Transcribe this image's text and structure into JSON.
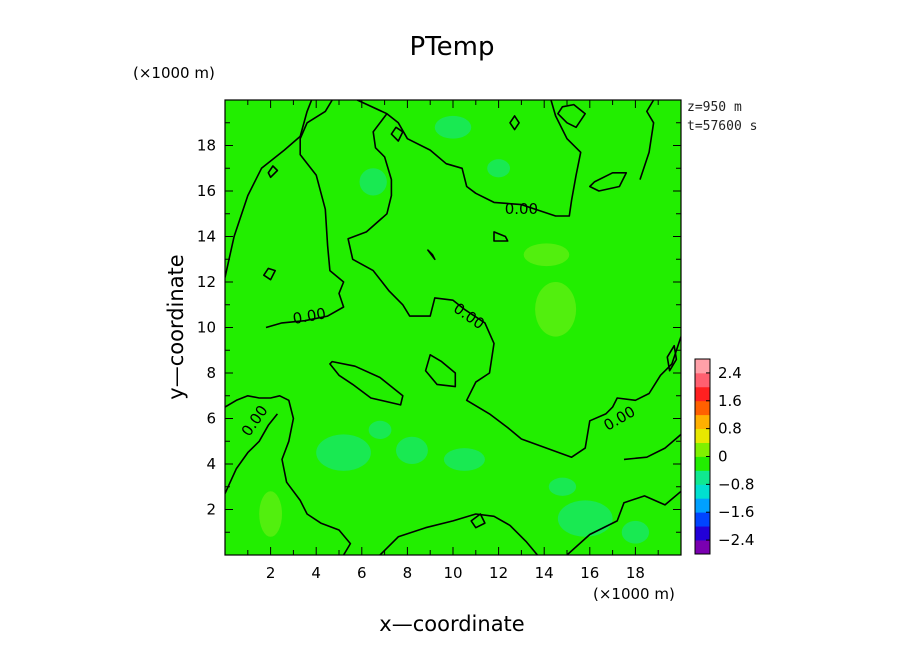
{
  "chart_data": {
    "type": "heatmap",
    "title": "PTemp",
    "xlabel": "x—coordinate",
    "ylabel": "y—coordinate",
    "x_unit_label": "(×1000 m)",
    "y_unit_label": "(×1000 m)",
    "xlim": [
      0,
      20
    ],
    "ylim": [
      0,
      20
    ],
    "x_ticks": [
      2,
      4,
      6,
      8,
      10,
      12,
      14,
      16,
      18
    ],
    "y_ticks": [
      2,
      4,
      6,
      8,
      10,
      12,
      14,
      16,
      18
    ],
    "x_tick_labels": [
      "2",
      "4",
      "6",
      "8",
      "10",
      "12",
      "14",
      "16",
      "18"
    ],
    "y_tick_labels": [
      "2",
      "4",
      "6",
      "8",
      "10",
      "12",
      "14",
      "16",
      "18"
    ],
    "info_lines": [
      "z=950 m",
      "t=57600 s"
    ],
    "contour_label": "0.00",
    "background_color": "#22ee00",
    "colorbar": {
      "range": [
        -2.8,
        2.8
      ],
      "tick_values": [
        2.4,
        1.6,
        0.8,
        0,
        -0.8,
        -1.6,
        -2.4
      ],
      "tick_labels": [
        "2.4",
        "1.6",
        "0.8",
        "0",
        "−0.8",
        "−1.6",
        "−2.4"
      ],
      "colors": [
        "#7a00b0",
        "#2200d8",
        "#0044ff",
        "#00a0ff",
        "#00e0d0",
        "#10e890",
        "#22ee00",
        "#80f000",
        "#e8e800",
        "#ffb000",
        "#ff6000",
        "#ff2020",
        "#ff6070",
        "#ffa0a8"
      ]
    },
    "patches": [
      {
        "x": 2.0,
        "y": 1.8,
        "rx": 0.5,
        "ry": 1.0,
        "value": 0.3
      },
      {
        "x": 5.2,
        "y": 4.5,
        "rx": 1.2,
        "ry": 0.8,
        "value": -0.3
      },
      {
        "x": 8.2,
        "y": 4.6,
        "rx": 0.7,
        "ry": 0.6,
        "value": -0.3
      },
      {
        "x": 6.8,
        "y": 5.5,
        "rx": 0.5,
        "ry": 0.4,
        "value": -0.3
      },
      {
        "x": 10.5,
        "y": 4.2,
        "rx": 0.9,
        "ry": 0.5,
        "value": -0.3
      },
      {
        "x": 15.8,
        "y": 1.6,
        "rx": 1.2,
        "ry": 0.8,
        "value": -0.3
      },
      {
        "x": 14.8,
        "y": 3.0,
        "rx": 0.6,
        "ry": 0.4,
        "value": -0.3
      },
      {
        "x": 14.5,
        "y": 10.8,
        "rx": 0.9,
        "ry": 1.2,
        "value": 0.3
      },
      {
        "x": 14.1,
        "y": 13.2,
        "rx": 1.0,
        "ry": 0.5,
        "value": 0.3
      },
      {
        "x": 10.0,
        "y": 18.8,
        "rx": 0.8,
        "ry": 0.5,
        "value": -0.3
      },
      {
        "x": 6.5,
        "y": 16.4,
        "rx": 0.6,
        "ry": 0.6,
        "value": -0.3
      },
      {
        "x": 12.0,
        "y": 17.0,
        "rx": 0.5,
        "ry": 0.4,
        "value": -0.3
      },
      {
        "x": 18.0,
        "y": 1.0,
        "rx": 0.6,
        "ry": 0.5,
        "value": -0.3
      }
    ],
    "zero_contours": [
      [
        [
          0,
          6.5
        ],
        [
          0.5,
          6.8
        ],
        [
          1,
          7.0
        ],
        [
          1.5,
          6.9
        ],
        [
          2.0,
          6.9
        ],
        [
          2.4,
          7.0
        ],
        [
          2.8,
          6.8
        ],
        [
          3,
          6.0
        ],
        [
          2.8,
          5.0
        ],
        [
          2.5,
          4.2
        ],
        [
          2.7,
          3.2
        ],
        [
          3.3,
          2.4
        ],
        [
          3.6,
          1.8
        ],
        [
          4.2,
          1.4
        ],
        [
          5.0,
          1.1
        ],
        [
          5.5,
          0.5
        ],
        [
          5.2,
          0
        ]
      ],
      [
        [
          0,
          2.7
        ],
        [
          0.5,
          3.8
        ],
        [
          1,
          4.5
        ],
        [
          1.5,
          5.0
        ],
        [
          1.9,
          5.7
        ],
        [
          2.3,
          6.2
        ]
      ],
      [
        [
          6.8,
          0
        ],
        [
          7.6,
          0.8
        ],
        [
          8.8,
          1.2
        ],
        [
          10,
          1.5
        ],
        [
          11,
          1.8
        ],
        [
          11.8,
          1.7
        ],
        [
          12.5,
          1.3
        ],
        [
          13.2,
          0.6
        ],
        [
          13.7,
          0
        ]
      ],
      [
        [
          15.0,
          0
        ],
        [
          16.0,
          0.9
        ],
        [
          17.2,
          1.5
        ],
        [
          17.5,
          2.3
        ],
        [
          18.4,
          2.6
        ],
        [
          19.3,
          2.2
        ],
        [
          20,
          2.8
        ]
      ],
      [
        [
          0,
          12.2
        ],
        [
          0.4,
          14
        ],
        [
          1.0,
          15.8
        ],
        [
          1.6,
          17.0
        ],
        [
          2.6,
          17.8
        ],
        [
          3.3,
          18.4
        ],
        [
          3.6,
          19.5
        ],
        [
          3.8,
          20
        ]
      ],
      [
        [
          1.8,
          10.0
        ],
        [
          2.5,
          10.2
        ],
        [
          3.5,
          10.3
        ],
        [
          4.5,
          10.5
        ],
        [
          5.2,
          10.9
        ],
        [
          5.0,
          11.5
        ],
        [
          5.2,
          12.0
        ],
        [
          4.6,
          12.5
        ],
        [
          4.5,
          13.6
        ],
        [
          4.4,
          15.2
        ],
        [
          4.0,
          16.7
        ],
        [
          3.3,
          17.6
        ],
        [
          3.3,
          18.3
        ],
        [
          3.6,
          19.0
        ],
        [
          4.4,
          19.5
        ],
        [
          4.7,
          20
        ]
      ],
      [
        [
          5.8,
          20
        ],
        [
          7.1,
          19.4
        ],
        [
          7.6,
          19.0
        ],
        [
          8.0,
          18.3
        ],
        [
          9.0,
          17.8
        ],
        [
          9.7,
          17.2
        ],
        [
          10.4,
          17.0
        ],
        [
          10.6,
          16.2
        ],
        [
          11.0,
          15.9
        ],
        [
          11.8,
          15.5
        ],
        [
          13.0,
          15.4
        ],
        [
          14.5,
          14.9
        ],
        [
          15.1,
          14.9
        ],
        [
          15.2,
          15.6
        ],
        [
          15.4,
          16.7
        ],
        [
          15.6,
          17.7
        ],
        [
          15.0,
          18.3
        ],
        [
          14.5,
          19.3
        ],
        [
          14.3,
          20
        ]
      ],
      [
        [
          7.1,
          19.4
        ],
        [
          6.5,
          18.6
        ],
        [
          6.6,
          17.9
        ],
        [
          7.0,
          17.5
        ],
        [
          7.3,
          16.5
        ],
        [
          7.3,
          15.8
        ],
        [
          7.1,
          15.0
        ],
        [
          6.2,
          14.2
        ],
        [
          5.4,
          13.9
        ],
        [
          5.6,
          13.0
        ],
        [
          6.5,
          12.5
        ],
        [
          7.2,
          11.6
        ],
        [
          7.8,
          11.0
        ],
        [
          8.1,
          10.5
        ],
        [
          9.0,
          10.5
        ],
        [
          9.2,
          11.3
        ],
        [
          10.0,
          11.2
        ],
        [
          10.5,
          10.8
        ],
        [
          11.4,
          10.2
        ],
        [
          11.8,
          9.3
        ],
        [
          11.6,
          8.0
        ],
        [
          11.0,
          7.6
        ],
        [
          10.6,
          6.8
        ],
        [
          11.6,
          6.2
        ],
        [
          12.4,
          5.6
        ],
        [
          13.0,
          5.1
        ],
        [
          14.1,
          4.7
        ],
        [
          15.2,
          4.3
        ],
        [
          15.8,
          4.7
        ],
        [
          16.0,
          5.9
        ],
        [
          16.7,
          6.2
        ],
        [
          17.0,
          6.5
        ],
        [
          17.2,
          6.9
        ],
        [
          18.0,
          6.8
        ],
        [
          18.6,
          7.1
        ],
        [
          19.1,
          7.9
        ],
        [
          19.6,
          8.4
        ],
        [
          20,
          9.6
        ]
      ],
      [
        [
          18.2,
          16.5
        ],
        [
          18.6,
          17.7
        ],
        [
          18.8,
          19.0
        ],
        [
          18.5,
          19.5
        ],
        [
          18.8,
          20
        ]
      ],
      [
        [
          17.5,
          4.2
        ],
        [
          18.5,
          4.3
        ],
        [
          19.3,
          4.7
        ],
        [
          20,
          5.3
        ]
      ]
    ],
    "closed_contours": [
      [
        [
          4.7,
          8.5
        ],
        [
          5.7,
          8.3
        ],
        [
          6.8,
          7.8
        ],
        [
          7.8,
          7.0
        ],
        [
          7.7,
          6.6
        ],
        [
          6.4,
          6.9
        ],
        [
          5.6,
          7.5
        ],
        [
          5.0,
          7.9
        ],
        [
          4.6,
          8.4
        ]
      ],
      [
        [
          9.0,
          8.8
        ],
        [
          9.5,
          8.5
        ],
        [
          10.1,
          8.0
        ],
        [
          10.1,
          7.4
        ],
        [
          9.3,
          7.5
        ],
        [
          8.8,
          8.1
        ]
      ],
      [
        [
          16.2,
          16.4
        ],
        [
          17.0,
          16.8
        ],
        [
          17.6,
          16.8
        ],
        [
          17.3,
          16.2
        ],
        [
          16.4,
          16.0
        ],
        [
          16.0,
          16.2
        ]
      ],
      [
        [
          14.6,
          19.4
        ],
        [
          15.0,
          19.0
        ],
        [
          15.4,
          18.8
        ],
        [
          15.8,
          19.4
        ],
        [
          15.3,
          19.8
        ],
        [
          14.8,
          19.7
        ]
      ],
      [
        [
          1.7,
          12.3
        ],
        [
          2.0,
          12.1
        ],
        [
          2.2,
          12.5
        ],
        [
          1.9,
          12.6
        ]
      ],
      [
        [
          1.9,
          16.8
        ],
        [
          2.1,
          17.1
        ],
        [
          2.3,
          16.9
        ],
        [
          2.0,
          16.6
        ]
      ],
      [
        [
          7.3,
          18.5
        ],
        [
          7.5,
          18.8
        ],
        [
          7.8,
          18.6
        ],
        [
          7.6,
          18.2
        ]
      ],
      [
        [
          12.5,
          19.0
        ],
        [
          12.7,
          19.3
        ],
        [
          12.9,
          19.0
        ],
        [
          12.7,
          18.7
        ]
      ],
      [
        [
          11.8,
          14.2
        ],
        [
          12.3,
          14.0
        ],
        [
          12.4,
          13.8
        ],
        [
          11.8,
          13.8
        ]
      ],
      [
        [
          19.4,
          8.7
        ],
        [
          19.7,
          9.2
        ],
        [
          19.8,
          8.6
        ],
        [
          19.5,
          8.1
        ]
      ],
      [
        [
          10.8,
          1.5
        ],
        [
          11.2,
          1.8
        ],
        [
          11.4,
          1.4
        ],
        [
          11.0,
          1.2
        ]
      ],
      [
        [
          8.9,
          13.4
        ],
        [
          9.2,
          13.0
        ],
        [
          9.1,
          13.2
        ]
      ]
    ],
    "contour_label_positions": [
      {
        "x": 13.0,
        "y": 15.2,
        "angle": 0
      },
      {
        "x": 3.7,
        "y": 10.5,
        "angle": -10
      },
      {
        "x": 10.7,
        "y": 10.5,
        "angle": 35
      },
      {
        "x": 1.3,
        "y": 5.9,
        "angle": -55
      },
      {
        "x": 17.3,
        "y": 6.0,
        "angle": -30
      }
    ]
  }
}
